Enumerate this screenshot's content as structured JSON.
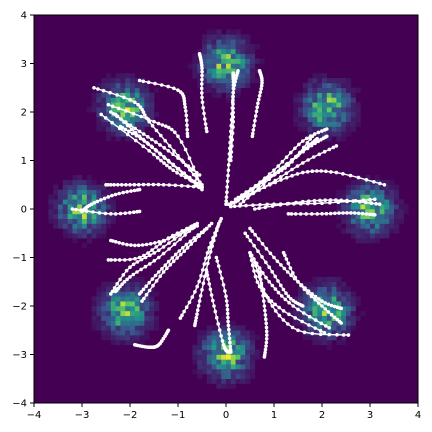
{
  "chart_data": {
    "type": "heatmap",
    "title": "",
    "xlabel": "",
    "ylabel": "",
    "xlim": [
      -4,
      4
    ],
    "ylim": [
      -4,
      4
    ],
    "xticks": [
      "−4",
      "−2",
      "−1",
      "0",
      "1",
      "2",
      "3",
      "4",
      "−3"
    ],
    "x_tick_values": [
      -4,
      -2,
      -1,
      0,
      1,
      2,
      3,
      4,
      -3
    ],
    "yticks": [
      "−4",
      "−3",
      "−2",
      "−1",
      "0",
      "1",
      "2",
      "3",
      "4"
    ],
    "y_tick_values": [
      -4,
      -3,
      -2,
      -1,
      0,
      1,
      2,
      3,
      4
    ],
    "grid": false,
    "heatmap": {
      "colormap": "viridis",
      "background_color": "#440154",
      "bins": 80,
      "ring_radius": 3.0,
      "cluster_count": 8,
      "cluster_centers": [
        [
          3.0,
          0.0
        ],
        [
          2.1,
          2.1
        ],
        [
          0.0,
          3.0
        ],
        [
          -2.1,
          2.1
        ],
        [
          -3.0,
          0.0
        ],
        [
          -2.1,
          -2.1
        ],
        [
          0.0,
          -3.0
        ],
        [
          2.1,
          -2.1
        ]
      ],
      "cluster_spread": 0.3
    },
    "trajectories": {
      "color": "#ffffff",
      "marker": "dot",
      "paths": [
        [
          [
            0.05,
            0.1
          ],
          [
            0.8,
            0.45
          ],
          [
            1.6,
            0.75
          ],
          [
            2.3,
            0.75
          ],
          [
            3.3,
            0.5
          ]
        ],
        [
          [
            0.1,
            0.05
          ],
          [
            1.0,
            0.1
          ],
          [
            2.0,
            0.12
          ],
          [
            3.1,
            0.2
          ]
        ],
        [
          [
            0.6,
            0.0
          ],
          [
            1.6,
            0.15
          ],
          [
            2.4,
            0.18
          ],
          [
            3.2,
            0.1
          ]
        ],
        [
          [
            1.3,
            -0.1
          ],
          [
            2.0,
            -0.1
          ],
          [
            2.6,
            -0.08
          ],
          [
            3.1,
            -0.12
          ]
        ],
        [
          [
            0.1,
            0.1
          ],
          [
            0.8,
            0.45
          ],
          [
            1.6,
            0.95
          ],
          [
            2.3,
            1.3
          ]
        ],
        [
          [
            0.2,
            0.15
          ],
          [
            0.9,
            0.65
          ],
          [
            1.7,
            1.25
          ],
          [
            2.1,
            1.5
          ]
        ],
        [
          [
            0.3,
            0.1
          ],
          [
            1.0,
            0.7
          ],
          [
            1.6,
            1.2
          ],
          [
            1.9,
            1.45
          ]
        ],
        [
          [
            0.2,
            0.2
          ],
          [
            0.8,
            0.6
          ],
          [
            1.3,
            0.9
          ],
          [
            1.8,
            1.5
          ]
        ],
        [
          [
            0.4,
            0.3
          ],
          [
            1.0,
            0.8
          ],
          [
            1.6,
            1.4
          ],
          [
            2.1,
            1.65
          ]
        ],
        [
          [
            0.0,
            0.1
          ],
          [
            0.05,
            0.8
          ],
          [
            0.1,
            1.6
          ],
          [
            0.15,
            2.4
          ],
          [
            0.15,
            2.8
          ]
        ],
        [
          [
            0.1,
            1.0
          ],
          [
            0.15,
            1.8
          ],
          [
            0.15,
            2.4
          ],
          [
            0.25,
            2.85
          ]
        ],
        [
          [
            0.55,
            1.5
          ],
          [
            0.65,
            2.1
          ],
          [
            0.75,
            2.6
          ],
          [
            0.7,
            2.85
          ]
        ],
        [
          [
            -0.4,
            1.6
          ],
          [
            -0.5,
            2.3
          ],
          [
            -0.5,
            2.9
          ],
          [
            -0.55,
            3.2
          ]
        ],
        [
          [
            -0.5,
            0.5
          ],
          [
            -1.0,
            1.1
          ],
          [
            -1.6,
            1.8
          ],
          [
            -1.9,
            2.2
          ],
          [
            -2.75,
            2.5
          ]
        ],
        [
          [
            -0.55,
            0.7
          ],
          [
            -1.2,
            1.2
          ],
          [
            -1.8,
            1.6
          ],
          [
            -2.4,
            2.0
          ]
        ],
        [
          [
            -0.5,
            0.45
          ],
          [
            -1.2,
            1.0
          ],
          [
            -1.8,
            1.5
          ],
          [
            -2.3,
            1.95
          ]
        ],
        [
          [
            -0.5,
            0.4
          ],
          [
            -1.1,
            0.9
          ],
          [
            -1.7,
            1.4
          ],
          [
            -2.2,
            1.7
          ]
        ],
        [
          [
            -0.8,
            1.5
          ],
          [
            -0.85,
            2.1
          ],
          [
            -1.0,
            2.45
          ],
          [
            -1.8,
            2.65
          ]
        ],
        [
          [
            -0.55,
            0.5
          ],
          [
            -1.1,
            0.8
          ],
          [
            -1.6,
            1.2
          ],
          [
            -2.6,
            1.95
          ]
        ],
        [
          [
            -0.5,
            0.45
          ],
          [
            -1.0,
            1.5
          ],
          [
            -1.5,
            1.8
          ],
          [
            -2.45,
            2.15
          ]
        ],
        [
          [
            -0.5,
            0.45
          ],
          [
            -1.3,
            0.5
          ],
          [
            -2.0,
            0.5
          ],
          [
            -2.5,
            0.5
          ]
        ],
        [
          [
            -1.8,
            0.4
          ],
          [
            -2.3,
            0.3
          ],
          [
            -2.8,
            0.1
          ],
          [
            -3.0,
            -0.05
          ]
        ],
        [
          [
            -1.8,
            -0.05
          ],
          [
            -2.4,
            -0.1
          ],
          [
            -3.2,
            0.0
          ]
        ],
        [
          [
            -0.6,
            -0.35
          ],
          [
            -1.3,
            -0.65
          ],
          [
            -1.9,
            -0.75
          ],
          [
            -2.4,
            -0.65
          ]
        ],
        [
          [
            -0.6,
            -0.3
          ],
          [
            -1.2,
            -0.6
          ],
          [
            -1.8,
            -1.0
          ],
          [
            -2.45,
            -1.05
          ]
        ],
        [
          [
            -0.7,
            -0.35
          ],
          [
            -1.4,
            -0.85
          ],
          [
            -2.0,
            -1.2
          ],
          [
            -2.4,
            -1.75
          ]
        ],
        [
          [
            -0.7,
            -0.4
          ],
          [
            -1.4,
            -1.0
          ],
          [
            -2.0,
            -1.4
          ],
          [
            -2.3,
            -1.7
          ]
        ],
        [
          [
            -0.4,
            -0.4
          ],
          [
            -0.9,
            -0.8
          ],
          [
            -1.4,
            -1.3
          ],
          [
            -1.8,
            -1.75
          ]
        ],
        [
          [
            -0.3,
            -0.3
          ],
          [
            -0.8,
            -0.8
          ],
          [
            -1.3,
            -1.3
          ],
          [
            -1.75,
            -1.9
          ]
        ],
        [
          [
            -0.1,
            -0.2
          ],
          [
            -0.35,
            -0.8
          ],
          [
            -0.6,
            -1.6
          ],
          [
            -0.95,
            -2.25
          ]
        ],
        [
          [
            -0.15,
            -0.3
          ],
          [
            -0.35,
            -1.0
          ],
          [
            -0.55,
            -1.9
          ],
          [
            -0.65,
            -2.4
          ]
        ],
        [
          [
            -1.2,
            -2.5
          ],
          [
            -1.4,
            -2.8
          ],
          [
            -1.6,
            -2.85
          ],
          [
            -1.9,
            -2.8
          ]
        ],
        [
          [
            -0.4,
            -1.3
          ],
          [
            -0.25,
            -2.0
          ],
          [
            -0.05,
            -2.8
          ],
          [
            0.05,
            -2.95
          ]
        ],
        [
          [
            -0.2,
            -1.0
          ],
          [
            0.0,
            -1.8
          ],
          [
            0.05,
            -2.4
          ],
          [
            0.1,
            -2.95
          ]
        ],
        [
          [
            0.7,
            -1.3
          ],
          [
            0.8,
            -2.0
          ],
          [
            0.85,
            -2.6
          ],
          [
            0.8,
            -3.05
          ]
        ],
        [
          [
            0.5,
            -0.4
          ],
          [
            1.0,
            -1.0
          ],
          [
            1.5,
            -1.5
          ],
          [
            2.0,
            -1.9
          ],
          [
            2.4,
            -2.05
          ]
        ],
        [
          [
            0.4,
            -0.5
          ],
          [
            0.9,
            -1.2
          ],
          [
            1.3,
            -1.8
          ],
          [
            1.6,
            -2.0
          ]
        ],
        [
          [
            0.5,
            -0.9
          ],
          [
            0.9,
            -1.5
          ],
          [
            1.4,
            -2.0
          ],
          [
            2.15,
            -2.45
          ]
        ],
        [
          [
            0.5,
            -0.9
          ],
          [
            0.7,
            -1.6
          ],
          [
            1.2,
            -2.1
          ],
          [
            2.05,
            -2.55
          ]
        ],
        [
          [
            0.6,
            -1.1
          ],
          [
            0.9,
            -1.9
          ],
          [
            1.5,
            -2.5
          ],
          [
            2.55,
            -2.6
          ]
        ],
        [
          [
            1.2,
            -0.9
          ],
          [
            1.5,
            -1.5
          ],
          [
            2.0,
            -2.0
          ],
          [
            2.4,
            -2.35
          ]
        ]
      ]
    }
  }
}
